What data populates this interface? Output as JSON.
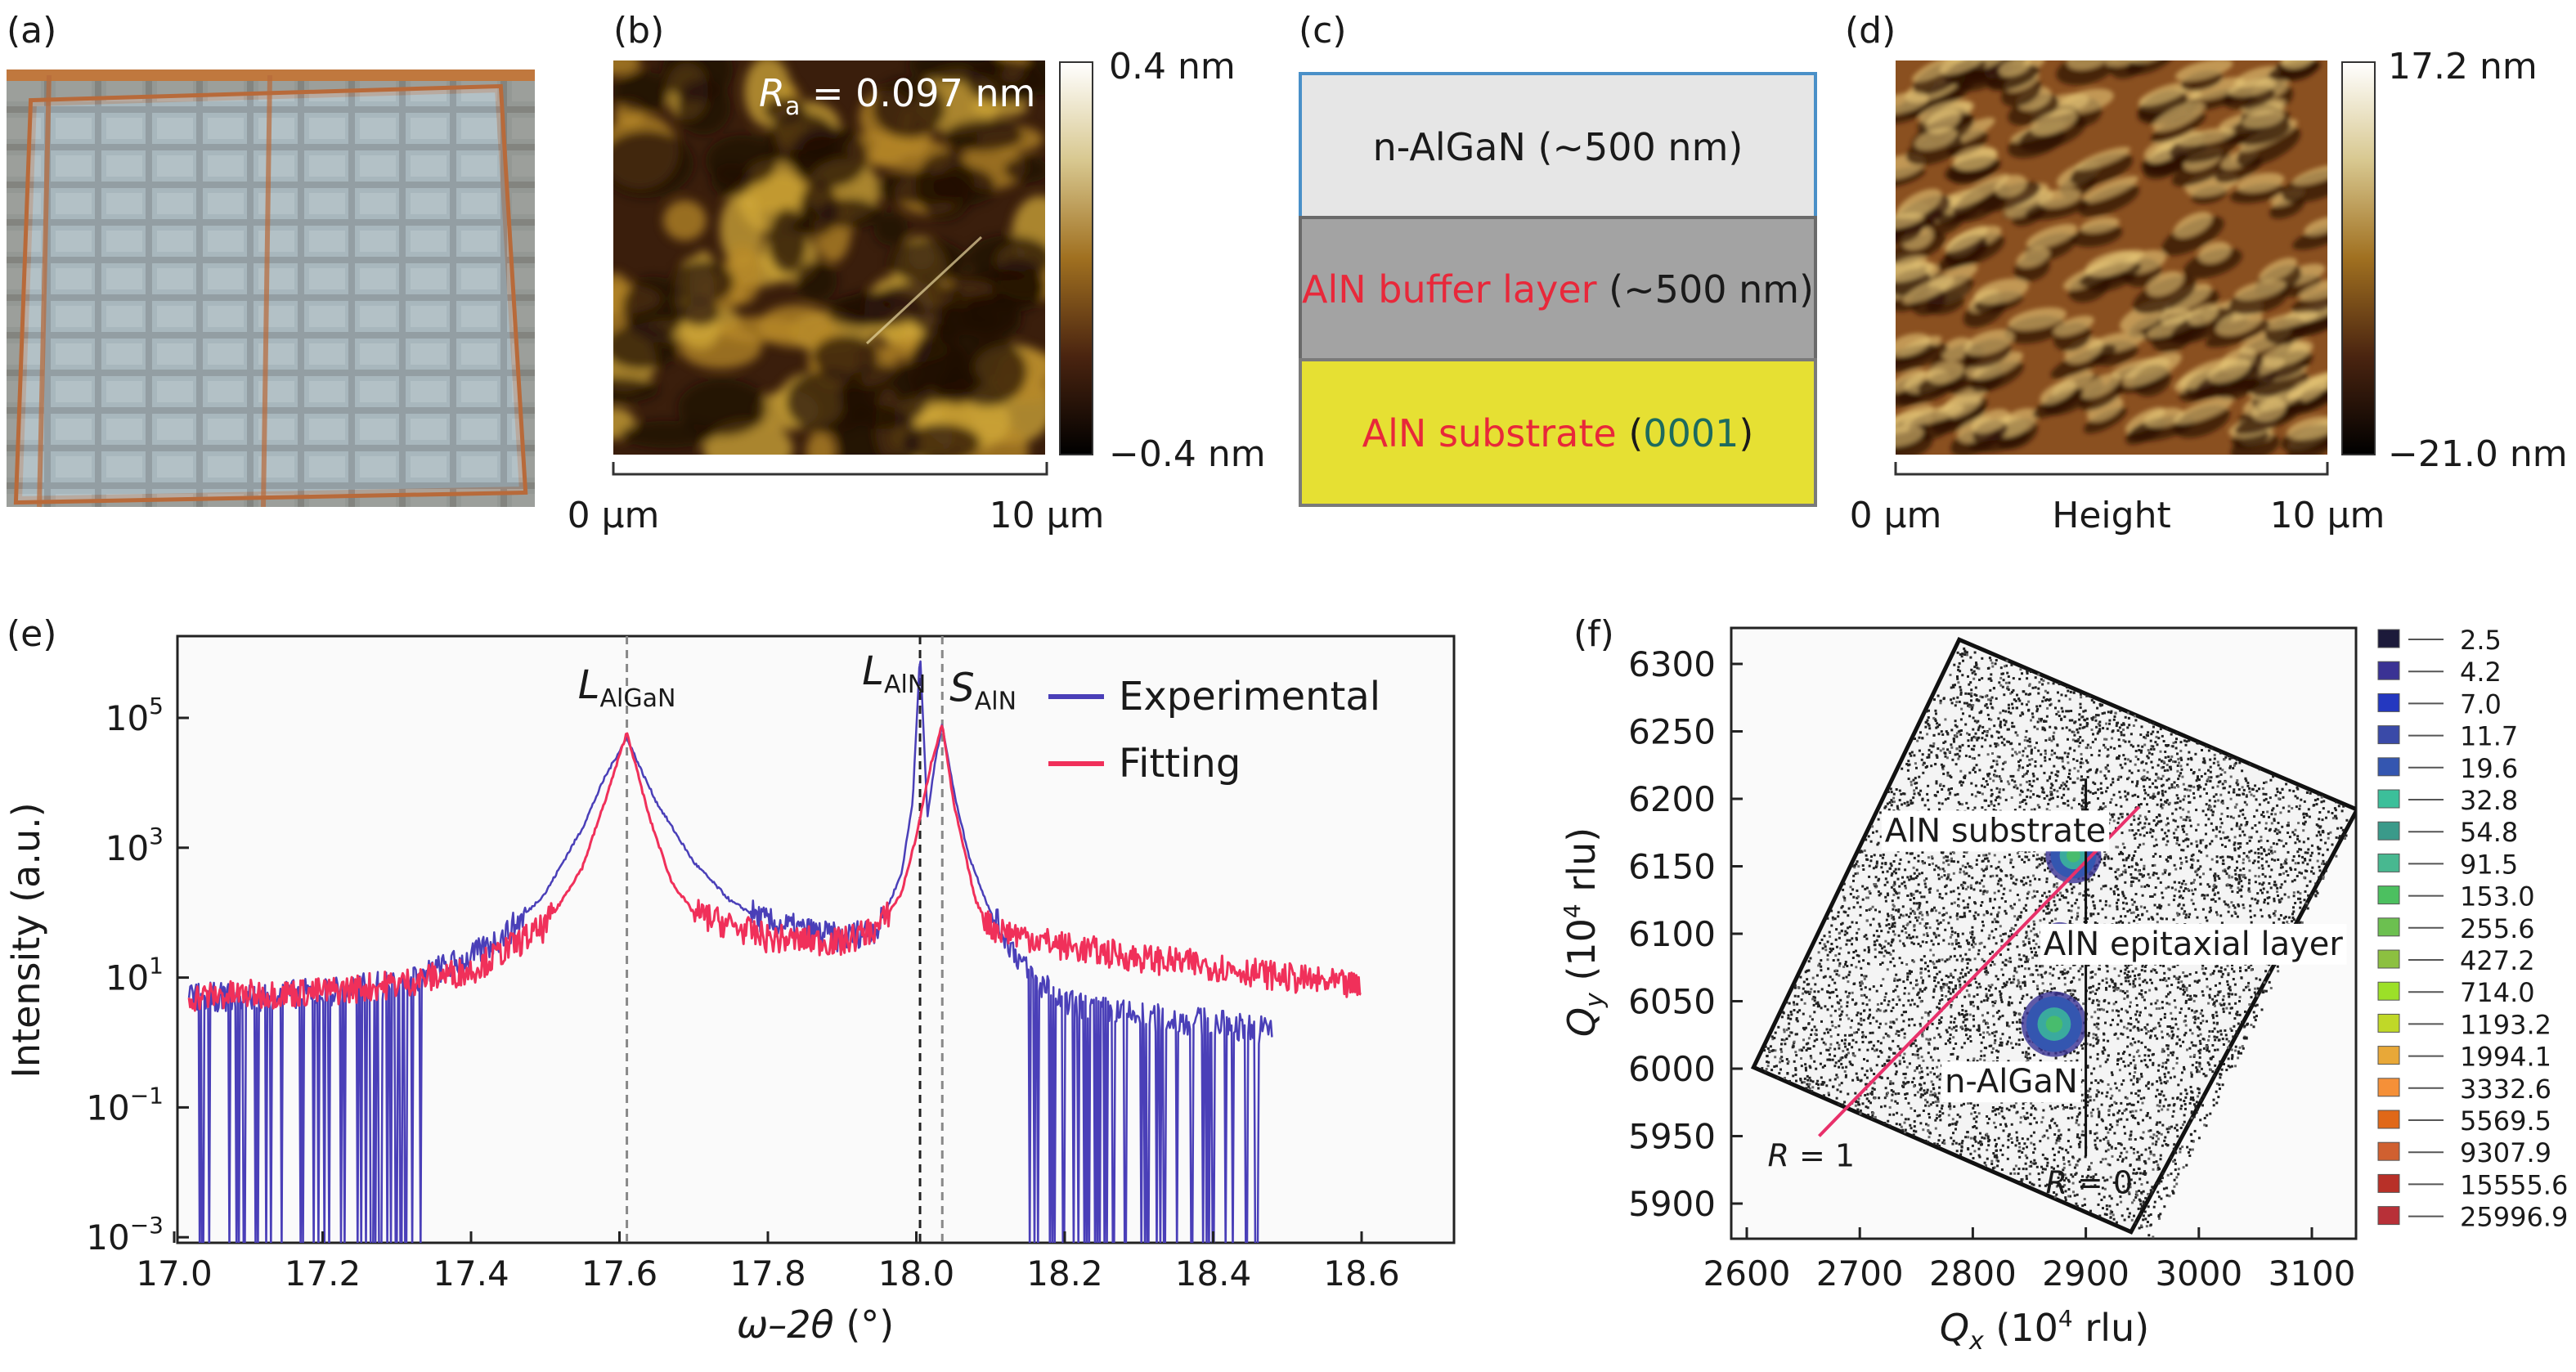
{
  "panels": {
    "a": {
      "label": "(a)"
    },
    "b": {
      "label": "(b)",
      "ra_symbol": "R",
      "ra_sub": "a",
      "ra_value": " = 0.097 nm",
      "colorbar_max": "0.4 nm",
      "colorbar_min": "−0.4 nm",
      "scale_start": "0 µm",
      "scale_end": "10 µm"
    },
    "c": {
      "label": "(c)",
      "layers": [
        {
          "text": "n-AlGaN (~500 nm)",
          "fill": "#e6e6e6",
          "border": "#4a90c8"
        },
        {
          "text_red": "AlN buffer layer",
          "text_black": " (~500 nm)",
          "fill": "#a3a3a3",
          "border": "#6a6a6a"
        },
        {
          "text_red": "AlN substrate",
          "text_open": " (",
          "text_code": "0001",
          "text_close": ")",
          "fill": "#e6e033",
          "border": "#7a7a7a"
        }
      ]
    },
    "d": {
      "label": "(d)",
      "colorbar_max": "17.2 nm",
      "colorbar_min": "−21.0 nm",
      "scale_start": "0 µm",
      "scale_mid": "Height",
      "scale_end": "10 µm"
    },
    "e": {
      "label": "(e)"
    },
    "f": {
      "label": "(f)"
    }
  },
  "colors": {
    "experimental": "#4a3fb8",
    "fitting": "#f0305a",
    "red_text": "#e8283a",
    "code_text": "#1d6b5e",
    "r1_line": "#e8306a"
  },
  "chart_data": [
    {
      "panel": "e",
      "type": "line",
      "xlabel_main": "ω–2θ",
      "xlabel_unit": " (°)",
      "ylabel": "Intensity (a.u.)",
      "yscale": "log",
      "xlim": [
        16.99,
        18.84
      ],
      "ylim": [
        0.0008,
        1800000
      ],
      "xticks": [
        "17.0",
        "17.2",
        "17.4",
        "17.6",
        "17.8",
        "18.0",
        "18.2",
        "18.4",
        "18.6"
      ],
      "yticks": [
        {
          "base": "10",
          "exp": "5",
          "value": 100000
        },
        {
          "base": "10",
          "exp": "3",
          "value": 1000
        },
        {
          "base": "10",
          "exp": "1",
          "value": 10
        },
        {
          "base": "10",
          "exp": "−1",
          "value": 0.1
        },
        {
          "base": "10",
          "exp": "−3",
          "value": 0.001
        }
      ],
      "legend": "top-right",
      "series": [
        {
          "name": "Experimental",
          "color": "#4a3fb8",
          "x": [
            17.02,
            17.1,
            17.2,
            17.3,
            17.4,
            17.45,
            17.5,
            17.55,
            17.58,
            17.61,
            17.63,
            17.65,
            17.7,
            17.75,
            17.8,
            17.9,
            17.95,
            17.98,
            17.995,
            18.005,
            18.015,
            18.025,
            18.035,
            18.05,
            18.07,
            18.1,
            18.15,
            18.2,
            18.3,
            18.4,
            18.48
          ],
          "y": [
            5,
            5,
            6,
            8,
            20,
            50,
            200,
            2000,
            12000,
            50000,
            15000,
            5000,
            600,
            150,
            70,
            40,
            60,
            400,
            5000,
            1000000,
            3000,
            20000,
            80000,
            8000,
            800,
            100,
            12,
            4,
            2.5,
            2,
            1.5
          ]
        },
        {
          "name": "Fitting",
          "color": "#f0305a",
          "x": [
            17.02,
            17.1,
            17.2,
            17.3,
            17.4,
            17.5,
            17.55,
            17.58,
            17.61,
            17.64,
            17.67,
            17.7,
            17.8,
            17.9,
            17.95,
            17.98,
            18.0,
            18.02,
            18.035,
            18.05,
            18.08,
            18.1,
            18.2,
            18.3,
            18.4,
            18.5,
            18.6
          ],
          "y": [
            5,
            5.5,
            6,
            8,
            13,
            60,
            500,
            5000,
            60000,
            3000,
            300,
            100,
            40,
            35,
            60,
            200,
            1500,
            20000,
            80000,
            5000,
            150,
            60,
            30,
            20,
            15,
            10,
            7
          ]
        }
      ],
      "reference_lines": [
        {
          "x": 17.61,
          "color": "#888888"
        },
        {
          "x": 18.005,
          "color": "#222222"
        },
        {
          "x": 18.035,
          "color": "#888888"
        }
      ],
      "annotations": [
        {
          "main": "L",
          "sub": "AlGaN",
          "x": 17.61,
          "y": 200000
        },
        {
          "main": "L",
          "sub": "AlN",
          "x": 17.97,
          "y": 330000
        },
        {
          "main": "S",
          "sub": "AlN",
          "x": 18.09,
          "y": 180000
        }
      ]
    },
    {
      "panel": "f",
      "type": "heatmap",
      "xlabel_main": "Q",
      "xlabel_sub": "x",
      "xlabel_unit_pre": " (10",
      "xlabel_unit_exp": "4",
      "xlabel_unit_post": " rlu)",
      "ylabel_main": "Q",
      "ylabel_sub": "y",
      "ylabel_unit_pre": " (10",
      "ylabel_unit_exp": "4",
      "ylabel_unit_post": " rlu)",
      "xlim": [
        2586,
        3139
      ],
      "ylim": [
        5874,
        6327
      ],
      "xticks": [
        "2600",
        "2700",
        "2800",
        "2900",
        "3000",
        "3100"
      ],
      "yticks": [
        "5900",
        "5950",
        "6000",
        "6050",
        "6100",
        "6150",
        "6200",
        "6250",
        "6300"
      ],
      "scan_region": [
        [
          2788,
          6318
        ],
        [
          3140,
          6192
        ],
        [
          2940,
          5879
        ],
        [
          2606,
          6001
        ]
      ],
      "peaks": [
        {
          "name": "AlN substrate",
          "x": 2889,
          "y": 6158,
          "label_x": 2820,
          "label_y": 6178
        },
        {
          "name": "AlN epitaxial layer",
          "x": 2877,
          "y": 6094,
          "label_x": 2995,
          "label_y": 6094
        },
        {
          "name": "n-AlGaN",
          "x": 2872,
          "y": 6033,
          "label_x": 2834,
          "label_y": 5992
        }
      ],
      "lines": [
        {
          "name": "R = 1",
          "italic": "R",
          "rest": " = 1",
          "from": [
            2664,
            5950
          ],
          "to": [
            2947,
            6194
          ],
          "label_x": 2657,
          "label_y": 5936
        },
        {
          "name": "R = 0",
          "italic": "R",
          "rest": " = 0",
          "from": [
            2900,
            6215
          ],
          "to": [
            2900,
            5935
          ],
          "label_x": 2903,
          "label_y": 5916
        }
      ],
      "legend": "right",
      "color_levels": [
        {
          "value": "2.5",
          "color": "#1c1a3a"
        },
        {
          "value": "4.2",
          "color": "#3a3294"
        },
        {
          "value": "7.0",
          "color": "#2438c0"
        },
        {
          "value": "11.7",
          "color": "#3a4aa8"
        },
        {
          "value": "19.6",
          "color": "#3456b0"
        },
        {
          "value": "32.8",
          "color": "#3cbf9a"
        },
        {
          "value": "54.8",
          "color": "#3a9a8a"
        },
        {
          "value": "91.5",
          "color": "#48b890"
        },
        {
          "value": "153.0",
          "color": "#4cc060"
        },
        {
          "value": "255.6",
          "color": "#6cc050"
        },
        {
          "value": "427.2",
          "color": "#8cc040"
        },
        {
          "value": "714.0",
          "color": "#9ce028"
        },
        {
          "value": "1193.2",
          "color": "#c0d828"
        },
        {
          "value": "1994.1",
          "color": "#e8a838"
        },
        {
          "value": "3332.6",
          "color": "#f59038"
        },
        {
          "value": "5569.5",
          "color": "#e06818"
        },
        {
          "value": "9307.9",
          "color": "#d06030"
        },
        {
          "value": "15555.6",
          "color": "#b83028"
        },
        {
          "value": "25996.9",
          "color": "#b83038"
        }
      ]
    }
  ]
}
